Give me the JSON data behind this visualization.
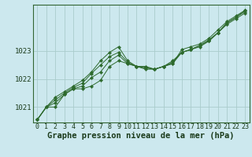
{
  "background_color": "#cce8ee",
  "grid_color": "#aacccc",
  "line_color": "#2d6a2d",
  "marker_color": "#2d6a2d",
  "xlabel": "Graphe pression niveau de la mer (hPa)",
  "xlabel_fontsize": 7.5,
  "ylabel_fontsize": 6.5,
  "tick_fontsize": 6.0,
  "xlim": [
    -0.5,
    23.5
  ],
  "ylim": [
    1020.45,
    1024.65
  ],
  "yticks": [
    1021,
    1022,
    1023
  ],
  "xticks": [
    0,
    1,
    2,
    3,
    4,
    5,
    6,
    7,
    8,
    9,
    10,
    11,
    12,
    13,
    14,
    15,
    16,
    17,
    18,
    19,
    20,
    21,
    22,
    23
  ],
  "series": [
    [
      1020.55,
      1021.0,
      1021.0,
      1021.45,
      1021.65,
      1021.65,
      1021.75,
      1021.95,
      1022.45,
      1022.65,
      1022.55,
      1022.45,
      1022.45,
      1022.35,
      1022.45,
      1022.55,
      1023.05,
      1023.15,
      1023.25,
      1023.45,
      1023.75,
      1024.05,
      1024.25,
      1024.45
    ],
    [
      1020.55,
      1021.0,
      1021.15,
      1021.45,
      1021.65,
      1021.75,
      1022.05,
      1022.25,
      1022.65,
      1022.85,
      1022.55,
      1022.45,
      1022.35,
      1022.35,
      1022.45,
      1022.55,
      1022.95,
      1023.05,
      1023.15,
      1023.35,
      1023.65,
      1023.95,
      1024.15,
      1024.35
    ],
    [
      1020.55,
      1021.0,
      1021.25,
      1021.5,
      1021.7,
      1021.85,
      1022.2,
      1022.5,
      1022.8,
      1022.95,
      1022.6,
      1022.45,
      1022.4,
      1022.35,
      1022.45,
      1022.6,
      1022.95,
      1023.05,
      1023.2,
      1023.4,
      1023.65,
      1024.0,
      1024.2,
      1024.4
    ],
    [
      1020.55,
      1021.0,
      1021.35,
      1021.55,
      1021.75,
      1021.95,
      1022.25,
      1022.65,
      1022.95,
      1023.15,
      1022.65,
      1022.45,
      1022.4,
      1022.35,
      1022.45,
      1022.65,
      1022.95,
      1023.05,
      1023.2,
      1023.35,
      1023.65,
      1024.0,
      1024.2,
      1024.45
    ]
  ]
}
